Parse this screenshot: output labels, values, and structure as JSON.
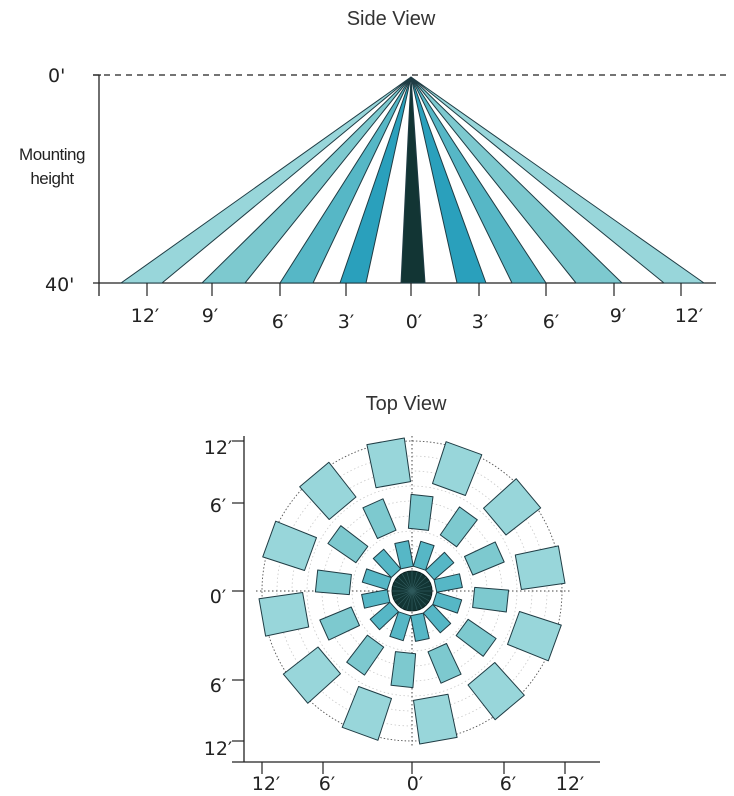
{
  "side_view": {
    "title": "Side View",
    "top_label": "0'",
    "bottom_label": "40'",
    "mounting_line1": "Mounting",
    "mounting_line2": "height",
    "x_ticks": [
      "12′",
      "9′",
      "6′",
      "3′",
      "0′",
      "3′",
      "6′",
      "9′",
      "12′"
    ]
  },
  "top_view": {
    "title": "Top View",
    "y_ticks": [
      "12′",
      "6′",
      "0′",
      "6′",
      "12′"
    ],
    "x_ticks": [
      "12′",
      "6′",
      "0′",
      "6′",
      "12′"
    ]
  },
  "colors": {
    "darkest": "#123534",
    "dark": "#2aa0bc",
    "mid": "#56b7c6",
    "light": "#7dc9cf",
    "lightest": "#98d6da",
    "outline": "#1f3c44"
  }
}
